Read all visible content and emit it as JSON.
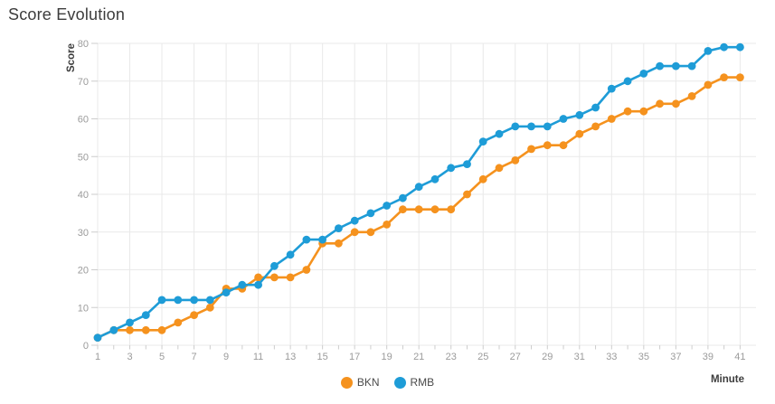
{
  "title": "Score Evolution",
  "axes": {
    "x_label": "Minute",
    "y_label": "Score"
  },
  "legend": {
    "items": [
      {
        "label": "BKN",
        "color": "#F5921E"
      },
      {
        "label": "RMB",
        "color": "#1E9CD7"
      }
    ]
  },
  "chart_data": {
    "type": "line",
    "title": "Score Evolution",
    "xlabel": "Minute",
    "ylabel": "Score",
    "x": [
      1,
      2,
      3,
      4,
      5,
      6,
      7,
      8,
      9,
      10,
      11,
      12,
      13,
      14,
      15,
      16,
      17,
      18,
      19,
      20,
      21,
      22,
      23,
      24,
      25,
      26,
      27,
      28,
      29,
      30,
      31,
      32,
      33,
      34,
      35,
      36,
      37,
      38,
      39,
      40,
      41
    ],
    "series": [
      {
        "name": "BKN",
        "color": "#F5921E",
        "values": [
          2,
          4,
          4,
          4,
          4,
          6,
          8,
          10,
          15,
          15,
          18,
          18,
          18,
          20,
          27,
          27,
          30,
          30,
          32,
          36,
          36,
          36,
          36,
          40,
          44,
          47,
          49,
          52,
          53,
          53,
          56,
          58,
          60,
          62,
          62,
          64,
          64,
          66,
          69,
          71,
          71
        ]
      },
      {
        "name": "RMB",
        "color": "#1E9CD7",
        "values": [
          2,
          4,
          6,
          8,
          12,
          12,
          12,
          12,
          14,
          16,
          16,
          21,
          24,
          28,
          28,
          31,
          33,
          35,
          37,
          39,
          42,
          44,
          47,
          48,
          54,
          56,
          58,
          58,
          58,
          60,
          61,
          63,
          68,
          70,
          72,
          74,
          74,
          74,
          78,
          79,
          79
        ]
      }
    ],
    "ylim": [
      0,
      80
    ],
    "yticks": [
      0,
      10,
      20,
      30,
      40,
      50,
      60,
      70,
      80
    ],
    "xticks": [
      1,
      3,
      5,
      7,
      9,
      11,
      13,
      15,
      17,
      19,
      21,
      23,
      25,
      27,
      29,
      31,
      33,
      35,
      37,
      39,
      41
    ],
    "grid": true,
    "legend_position": "bottom",
    "marker": "circle",
    "tick_color": "#9b9b9b",
    "grid_color": "#e9e9e9",
    "axis_text_color": "#3d3d3d"
  }
}
